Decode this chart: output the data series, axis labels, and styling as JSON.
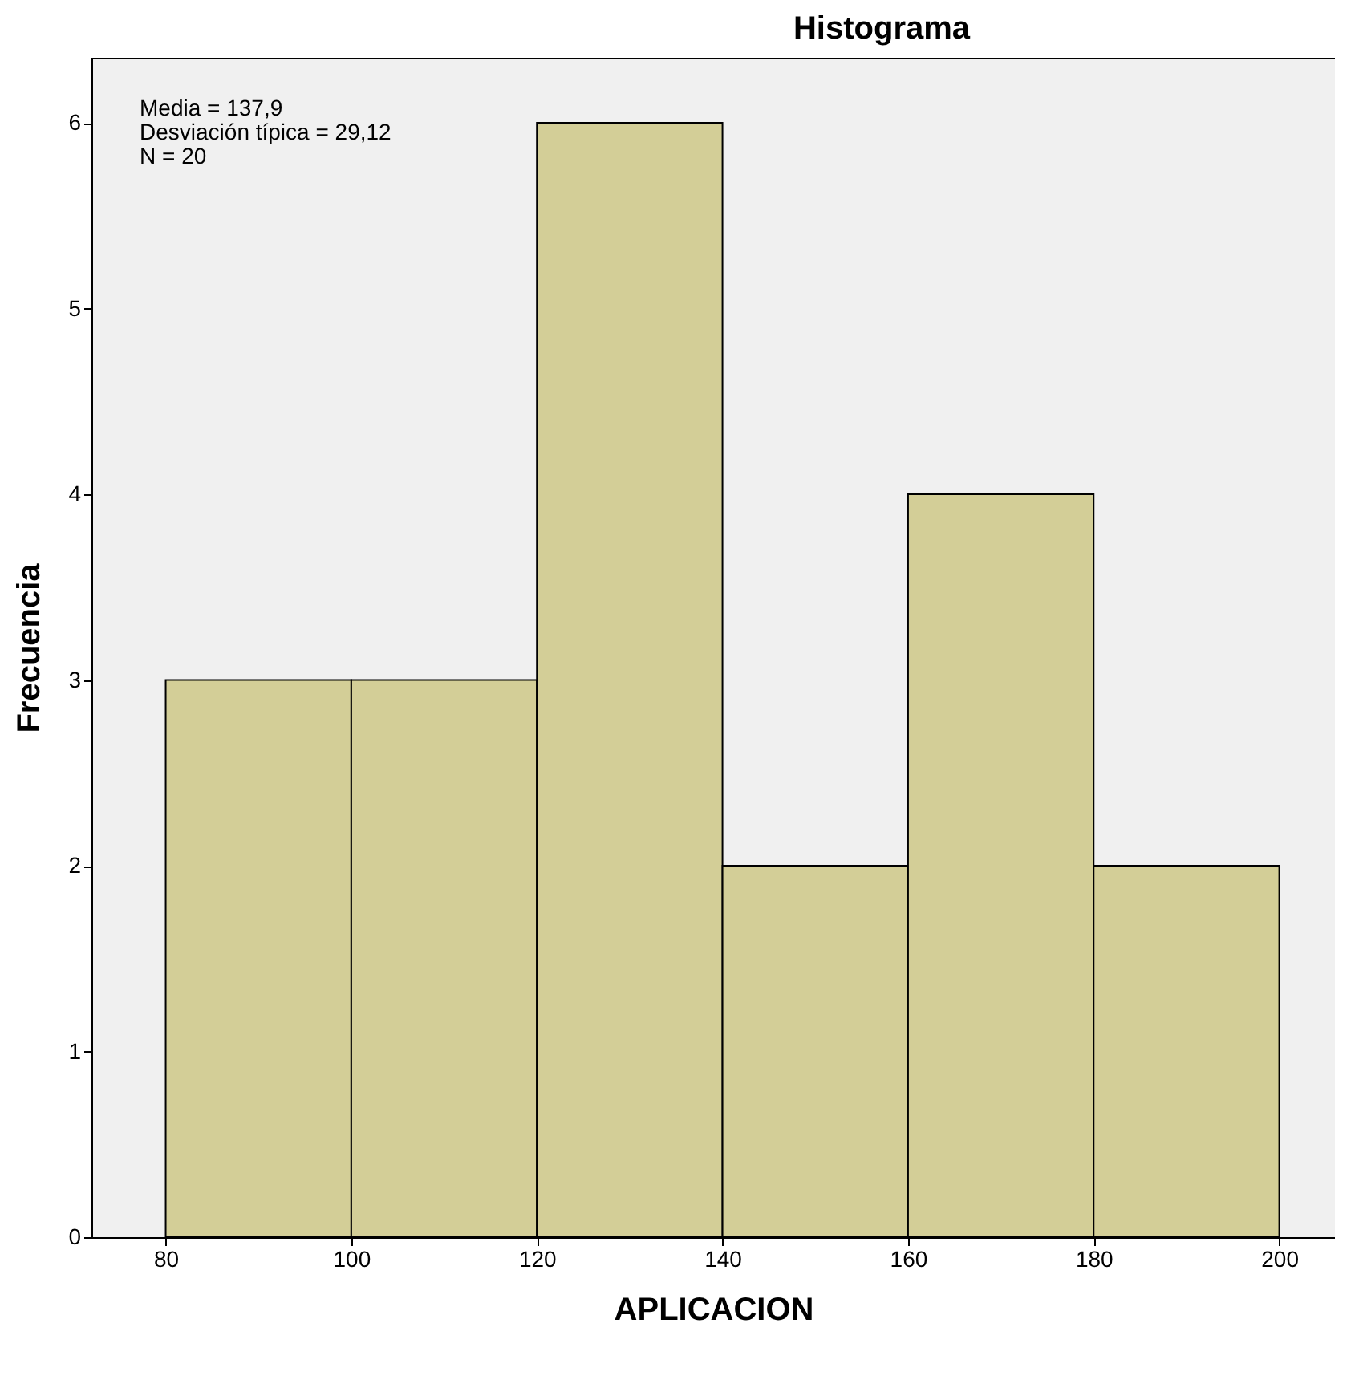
{
  "chart_data": {
    "type": "histogram",
    "title": "Histograma",
    "xlabel": "APLICACION",
    "ylabel": "Frecuencia",
    "bins": [
      80,
      100,
      120,
      140,
      160,
      180,
      200
    ],
    "values": [
      3,
      3,
      6,
      2,
      4,
      2
    ],
    "color": "#d3ce97",
    "xlim": [
      72,
      206
    ],
    "xticks": [
      80,
      100,
      120,
      140,
      160,
      180,
      200
    ],
    "ylim": [
      0,
      6.35
    ],
    "yticks": [
      0,
      1,
      2,
      3,
      4,
      5,
      6
    ],
    "grid": false,
    "annotations": [
      "Media = 137,9",
      "Desviación típica = 29,12",
      "N = 20"
    ]
  }
}
